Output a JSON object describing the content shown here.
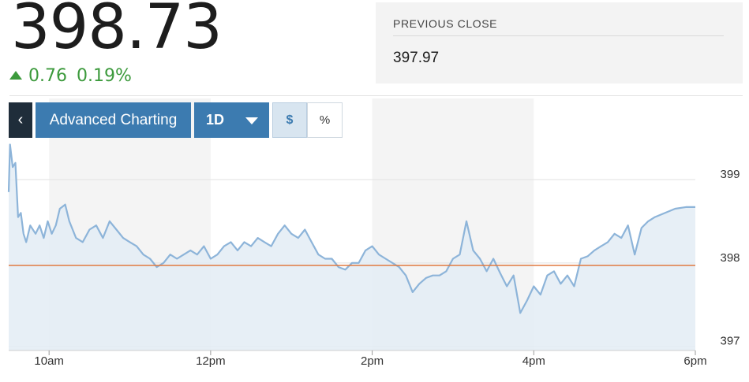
{
  "quote": {
    "price": "398.73",
    "change": "0.76",
    "change_percent": "0.19%",
    "direction_icon": "up-triangle-icon",
    "prev_close_label": "PREVIOUS CLOSE",
    "prev_close_value": "397.97"
  },
  "toolbar": {
    "back_icon": "chevron-left-icon",
    "back_glyph": "‹",
    "advanced_label": "Advanced Charting",
    "range_label": "1D",
    "range_icon": "caret-down-icon",
    "dollar_label": "$",
    "percent_label": "%"
  },
  "colors": {
    "line": "#8db4d9",
    "fill": "#e3ecf5",
    "previous_close_line": "#e07a40",
    "positive": "#3c9a3c",
    "button": "#3c7bb0"
  },
  "chart_data": {
    "type": "area",
    "xlim": [
      "09:30",
      "18:00"
    ],
    "ylim": [
      396.95,
      399.5
    ],
    "x_ticks": [
      {
        "t": "10:00",
        "label": "10am"
      },
      {
        "t": "12:00",
        "label": "12pm"
      },
      {
        "t": "14:00",
        "label": "2pm"
      },
      {
        "t": "16:00",
        "label": "4pm"
      },
      {
        "t": "18:00",
        "label": "6pm"
      }
    ],
    "y_ticks": [
      397,
      398,
      399
    ],
    "reference_line": 397.97,
    "series": [
      {
        "x": [
          "09:30",
          "09:31",
          "09:33",
          "09:35",
          "09:37",
          "09:39",
          "09:41",
          "09:43",
          "09:46",
          "09:50",
          "09:53",
          "09:56",
          "09:59",
          "10:02",
          "10:05",
          "10:08",
          "10:12",
          "10:15",
          "10:20",
          "10:25",
          "10:30",
          "10:35",
          "10:40",
          "10:45",
          "10:50",
          "10:55",
          "11:00",
          "11:05",
          "11:10",
          "11:15",
          "11:20",
          "11:25",
          "11:30",
          "11:35",
          "11:40",
          "11:45",
          "11:50",
          "11:55",
          "12:00",
          "12:05",
          "12:10",
          "12:15",
          "12:20",
          "12:25",
          "12:30",
          "12:35",
          "12:40",
          "12:45",
          "12:50",
          "12:55",
          "13:00",
          "13:05",
          "13:10",
          "13:15",
          "13:20",
          "13:25",
          "13:30",
          "13:35",
          "13:40",
          "13:45",
          "13:50",
          "13:55",
          "14:00",
          "14:05",
          "14:10",
          "14:15",
          "14:20",
          "14:25",
          "14:30",
          "14:35",
          "14:40",
          "14:45",
          "14:50",
          "14:55",
          "15:00",
          "15:05",
          "15:10",
          "15:15",
          "15:20",
          "15:25",
          "15:30",
          "15:35",
          "15:40",
          "15:45",
          "15:50",
          "15:55",
          "16:00",
          "16:05",
          "16:10",
          "16:15",
          "16:20",
          "16:25",
          "16:30",
          "16:35",
          "16:40",
          "16:45",
          "16:50",
          "16:55",
          "17:00",
          "17:05",
          "17:10",
          "17:15",
          "17:20",
          "17:25",
          "17:30",
          "17:45",
          "17:53",
          "18:00"
        ],
        "y": [
          398.85,
          399.42,
          399.15,
          399.2,
          398.55,
          398.6,
          398.35,
          398.25,
          398.45,
          398.35,
          398.45,
          398.3,
          398.5,
          398.35,
          398.45,
          398.65,
          398.7,
          398.5,
          398.3,
          398.25,
          398.4,
          398.45,
          398.3,
          398.5,
          398.4,
          398.3,
          398.25,
          398.2,
          398.1,
          398.05,
          397.95,
          398.0,
          398.1,
          398.05,
          398.1,
          398.15,
          398.1,
          398.2,
          398.05,
          398.1,
          398.2,
          398.25,
          398.15,
          398.25,
          398.2,
          398.3,
          398.25,
          398.2,
          398.35,
          398.45,
          398.35,
          398.3,
          398.4,
          398.25,
          398.1,
          398.05,
          398.05,
          397.95,
          397.92,
          398.0,
          398.0,
          398.15,
          398.2,
          398.1,
          398.05,
          398.0,
          397.95,
          397.85,
          397.65,
          397.75,
          397.82,
          397.85,
          397.85,
          397.9,
          398.05,
          398.1,
          398.5,
          398.15,
          398.05,
          397.9,
          398.05,
          397.88,
          397.72,
          397.85,
          397.4,
          397.55,
          397.72,
          397.62,
          397.85,
          397.9,
          397.75,
          397.85,
          397.72,
          398.05,
          398.08,
          398.15,
          398.2,
          398.25,
          398.35,
          398.3,
          398.45,
          398.1,
          398.42,
          398.5,
          398.55,
          398.65,
          398.67,
          398.67
        ]
      }
    ]
  }
}
